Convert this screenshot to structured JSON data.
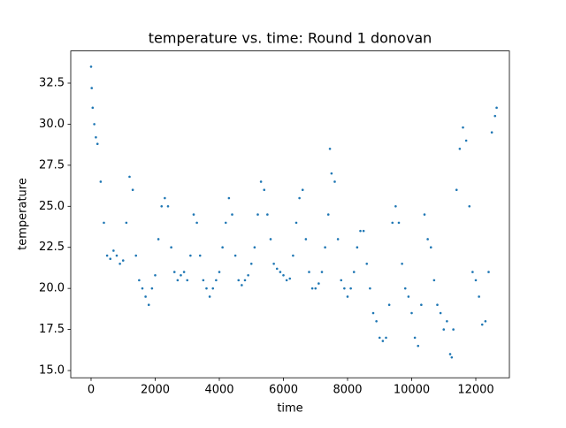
{
  "chart_data": {
    "type": "scatter",
    "title": "temperature vs. time: Round 1 donovan",
    "x_label": "time",
    "y_label": "temperature",
    "color": "#1f77b4",
    "x": [
      0,
      20,
      50,
      100,
      150,
      200,
      300,
      400,
      500,
      600,
      700,
      800,
      900,
      1000,
      1100,
      1200,
      1300,
      1400,
      1500,
      1600,
      1700,
      1800,
      1900,
      2000,
      2100,
      2200,
      2300,
      2400,
      2500,
      2600,
      2700,
      2800,
      2900,
      3000,
      3100,
      3200,
      3300,
      3400,
      3500,
      3600,
      3700,
      3800,
      3900,
      4000,
      4100,
      4200,
      4300,
      4400,
      4500,
      4600,
      4700,
      4800,
      4900,
      5000,
      5100,
      5200,
      5300,
      5400,
      5500,
      5600,
      5700,
      5800,
      5900,
      6000,
      6100,
      6200,
      6300,
      6400,
      6500,
      6600,
      6700,
      6800,
      6900,
      7000,
      7100,
      7200,
      7300,
      7400,
      7450,
      7500,
      7600,
      7700,
      7800,
      7900,
      8000,
      8100,
      8200,
      8300,
      8400,
      8500,
      8600,
      8700,
      8800,
      8900,
      9000,
      9100,
      9200,
      9300,
      9400,
      9500,
      9600,
      9700,
      9800,
      9900,
      10000,
      10100,
      10200,
      10300,
      10400,
      10500,
      10600,
      10700,
      10800,
      10900,
      11000,
      11100,
      11200,
      11250,
      11300,
      11400,
      11500,
      11600,
      11700,
      11800,
      11900,
      12000,
      12100,
      12200,
      12300,
      12400,
      12500,
      12600,
      12650
    ],
    "values": [
      33.5,
      32.2,
      31,
      30,
      29.2,
      28.8,
      26.5,
      24,
      22,
      21.8,
      22.3,
      22,
      21.5,
      21.7,
      24,
      26.8,
      26,
      22,
      20.5,
      20,
      19.5,
      19,
      20,
      20.8,
      23,
      25,
      25.5,
      25,
      22.5,
      21,
      20.5,
      20.8,
      21,
      20.5,
      22,
      24.5,
      24,
      22,
      20.5,
      20,
      19.5,
      20,
      20.5,
      21,
      22.5,
      24,
      25.5,
      24.5,
      22,
      20.5,
      20.2,
      20.5,
      20.8,
      21.5,
      22.5,
      24.5,
      26.5,
      26,
      24.5,
      23,
      21.5,
      21.2,
      21,
      20.8,
      20.5,
      20.6,
      22,
      24,
      25.5,
      26,
      23,
      21,
      20,
      20,
      20.3,
      21,
      22.5,
      24.5,
      28.5,
      27,
      26.5,
      23,
      20.5,
      20,
      19.5,
      20,
      21,
      22.5,
      23.5,
      23.5,
      21.5,
      20,
      18.5,
      18,
      17,
      16.8,
      17,
      19,
      24,
      25,
      24,
      21.5,
      20,
      19.5,
      18.5,
      17,
      16.5,
      19,
      24.5,
      23,
      22.5,
      20.5,
      19,
      18.5,
      17.5,
      18,
      16,
      15.8,
      17.5,
      26,
      28.5,
      29.8,
      29,
      25,
      21,
      20.5,
      19.5,
      17.8,
      18,
      21,
      29.5,
      30.5,
      31
    ],
    "xlim": [
      -634,
      13048
    ],
    "ylim": [
      14.56,
      34.46
    ],
    "xticks": [
      0,
      2000,
      4000,
      6000,
      8000,
      10000,
      12000
    ],
    "yticks": [
      {
        "value": 15,
        "label": "15.0"
      },
      17.5,
      {
        "value": 20,
        "label": "20.0"
      },
      22.5,
      {
        "value": 25,
        "label": "25.0"
      },
      27.5,
      {
        "value": 30,
        "label": "30.0"
      },
      32.5
    ]
  }
}
